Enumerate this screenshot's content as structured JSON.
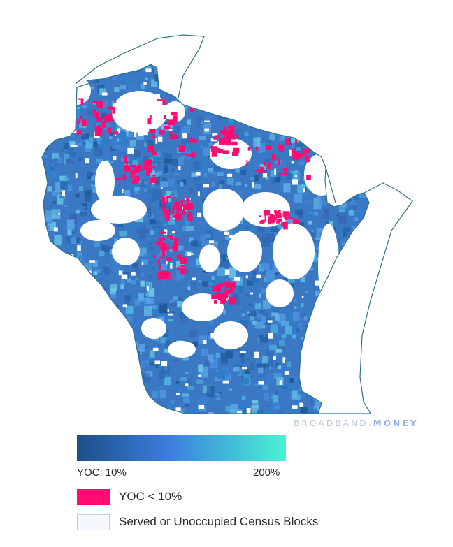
{
  "watermark": {
    "left": "BROADBAND.",
    "right": "MONEY"
  },
  "colors": {
    "outline": "#2f6f8c",
    "ramp_low": "#1d4e86",
    "ramp_mid": "#3d7fe0",
    "ramp_high": "#49f3d2",
    "yoc_low": "#ff0c72",
    "served": "#f6f8ff"
  },
  "legend": {
    "ramp_min_label": "YOC: 10%",
    "ramp_max_label": "200%",
    "yoc_low_label": "YOC < 10%",
    "served_label": "Served or Unoccupied Census Blocks"
  }
}
